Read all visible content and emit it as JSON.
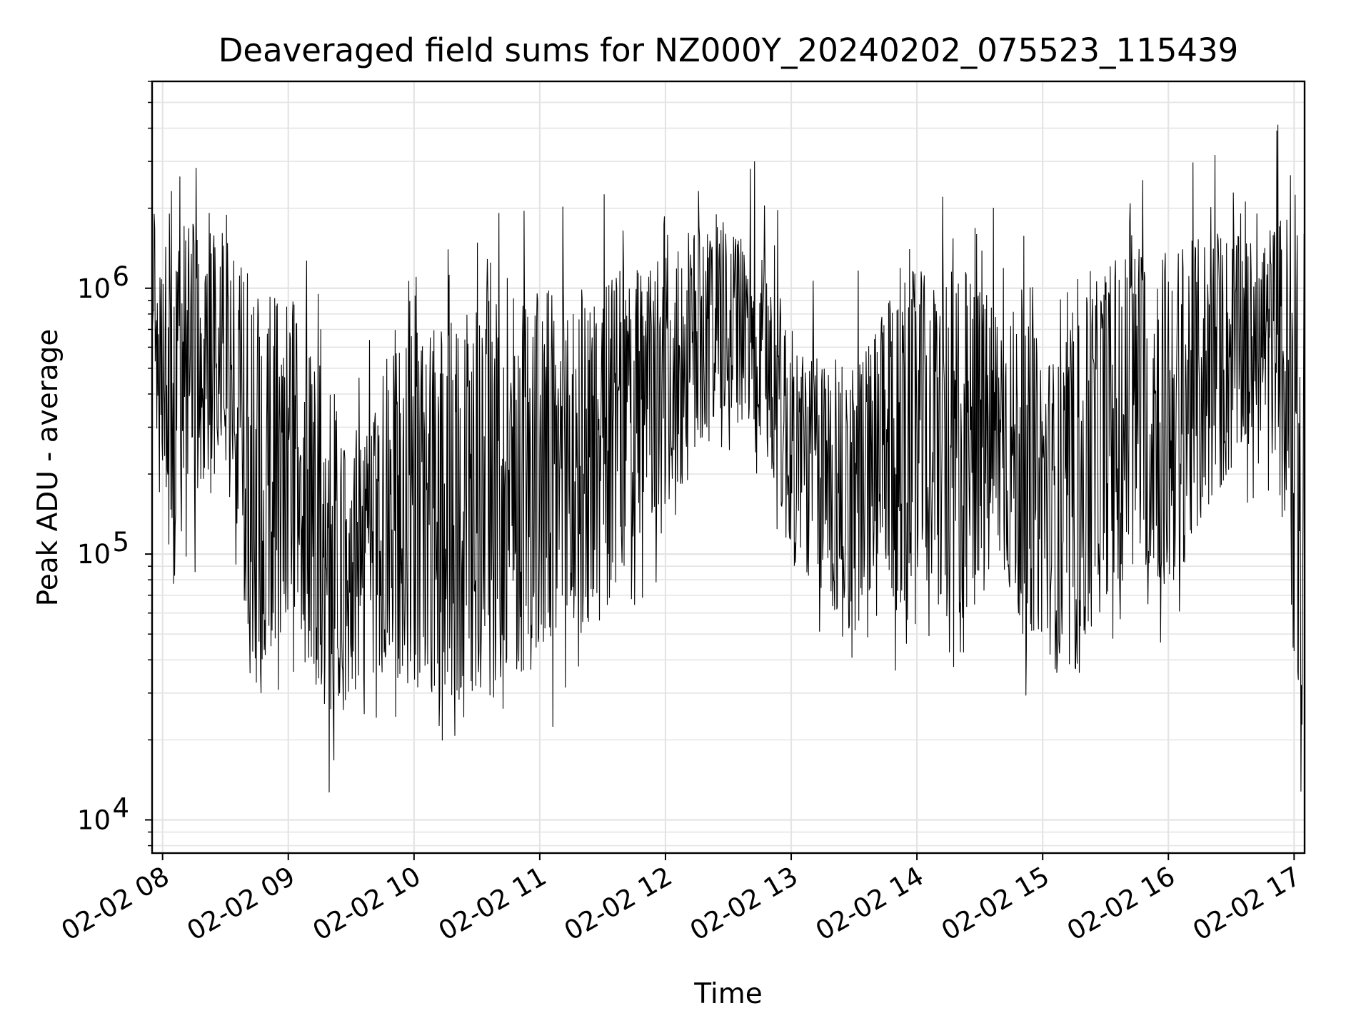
{
  "chart_data": {
    "type": "line",
    "title": "Deaveraged field sums for NZ000Y_20240202_075523_115439",
    "xlabel": "Time",
    "ylabel": "Peak ADU - average",
    "yscale": "log",
    "grid": true,
    "x_tick_labels": [
      "02-02 08",
      "02-02 09",
      "02-02 10",
      "02-02 11",
      "02-02 12",
      "02-02 13",
      "02-02 14",
      "02-02 15",
      "02-02 16",
      "02-02 17"
    ],
    "y_tick_labels": [
      {
        "value": 10000,
        "base": "10",
        "exp": "4"
      },
      {
        "value": 100000,
        "base": "10",
        "exp": "5"
      },
      {
        "value": 1000000,
        "base": "10",
        "exp": "6"
      }
    ],
    "xlim": [
      "2024-02-02 07:55",
      "2024-02-02 17:05"
    ],
    "ylim": [
      7500,
      6000000
    ],
    "line_color": "#000000",
    "series": [
      {
        "x": [
          "07:55",
          "08:05",
          "08:10",
          "08:20",
          "08:30",
          "08:40",
          "08:50",
          "09:00",
          "09:10",
          "09:20",
          "09:30",
          "09:40",
          "09:50",
          "10:00",
          "10:10",
          "10:20",
          "10:30",
          "10:40",
          "10:50",
          "11:00",
          "11:10",
          "11:20",
          "11:30",
          "11:40",
          "11:50",
          "12:00",
          "12:10",
          "12:20",
          "12:30",
          "12:40",
          "12:50",
          "13:00",
          "13:10",
          "13:20",
          "13:30",
          "13:40",
          "13:50",
          "14:00",
          "14:10",
          "14:20",
          "14:30",
          "14:40",
          "14:50",
          "15:00",
          "15:10",
          "15:20",
          "15:30",
          "15:40",
          "15:50",
          "16:00",
          "16:10",
          "16:20",
          "16:30",
          "16:40",
          "16:50",
          "17:00",
          "17:05"
        ],
        "low": [
          450000,
          110000,
          180000,
          130000,
          300000,
          40000,
          40000,
          60000,
          35000,
          22000,
          30000,
          35000,
          35000,
          30000,
          30000,
          28000,
          30000,
          28000,
          35000,
          38000,
          40000,
          50000,
          60000,
          80000,
          120000,
          150000,
          180000,
          300000,
          320000,
          300000,
          200000,
          90000,
          80000,
          60000,
          50000,
          80000,
          60000,
          90000,
          60000,
          40000,
          60000,
          90000,
          50000,
          50000,
          30000,
          40000,
          70000,
          80000,
          90000,
          70000,
          100000,
          150000,
          200000,
          280000,
          300000,
          40000,
          12000
        ],
        "high": [
          800000,
          2000000,
          1800000,
          1700000,
          1600000,
          1000000,
          1000000,
          1000000,
          600000,
          450000,
          300000,
          300000,
          700000,
          700000,
          650000,
          800000,
          950000,
          950000,
          1000000,
          1000000,
          1000000,
          1000000,
          1000000,
          1200000,
          1200000,
          1300000,
          1600000,
          1800000,
          1600000,
          1500000,
          1200000,
          700000,
          550000,
          600000,
          500000,
          700000,
          1000000,
          1200000,
          1000000,
          1300000,
          1000000,
          900000,
          800000,
          600000,
          500000,
          900000,
          1200000,
          1400000,
          1400000,
          1400000,
          1500000,
          1600000,
          1600000,
          1500000,
          1800000,
          2000000,
          1000000
        ]
      }
    ]
  }
}
